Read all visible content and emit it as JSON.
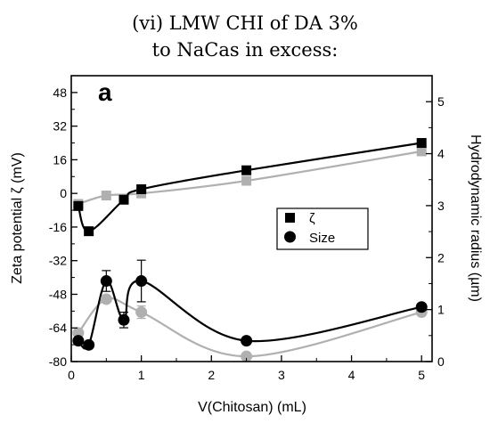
{
  "title_line1": "(vi) LMW CHI of DA 3%",
  "title_line2": "to NaCas in excess:",
  "chart_data": {
    "type": "scatter",
    "panel_label": "a",
    "xlabel": "V(Chitosan) (mL)",
    "ylabel_left": "Zeta potential ζ (mV)",
    "ylabel_right": "Hydrodynamic radius (µm)",
    "xlim": [
      0,
      5.15
    ],
    "ylim_left": [
      -80,
      56
    ],
    "ylim_right": [
      0,
      5.5
    ],
    "x_ticks": [
      0,
      1,
      2,
      3,
      4,
      5
    ],
    "y_left_ticks": [
      48,
      32,
      16,
      0,
      -16,
      -32,
      -48,
      -64,
      -80
    ],
    "y_right_ticks": [
      0,
      1,
      2,
      3,
      4,
      5
    ],
    "legend": {
      "position": "right-center",
      "entries": [
        "ζ",
        "Size"
      ]
    },
    "colors": {
      "primary": "#000000",
      "secondary": "#b0b0b0"
    },
    "series": [
      {
        "name": "ζ",
        "axis": "left",
        "marker": "square",
        "color": "#000000",
        "x": [
          0.1,
          0.25,
          0.75,
          1.0,
          2.5,
          5.0
        ],
        "y": [
          -6,
          -18,
          -3,
          2,
          11,
          24
        ]
      },
      {
        "axis": "left",
        "marker": "square",
        "color": "#b0b0b0",
        "x": [
          0.1,
          0.5,
          1.0,
          2.5,
          5.0
        ],
        "y": [
          -5,
          -1,
          0,
          6,
          20
        ]
      },
      {
        "name": "Size",
        "axis": "right",
        "marker": "circle",
        "color": "#000000",
        "x": [
          0.1,
          0.25,
          0.5,
          0.75,
          1.0,
          2.5,
          5.0
        ],
        "y": [
          0.4,
          0.32,
          1.55,
          0.8,
          1.55,
          0.4,
          1.05
        ],
        "err": [
          0,
          0,
          0.2,
          0.15,
          0.4,
          0,
          0
        ]
      },
      {
        "axis": "right",
        "marker": "circle",
        "color": "#b0b0b0",
        "x": [
          0.1,
          0.5,
          1.0,
          2.5,
          5.0
        ],
        "y": [
          0.55,
          1.2,
          0.95,
          0.1,
          0.95
        ],
        "err": [
          0,
          0,
          0.12,
          0,
          0
        ]
      }
    ]
  }
}
